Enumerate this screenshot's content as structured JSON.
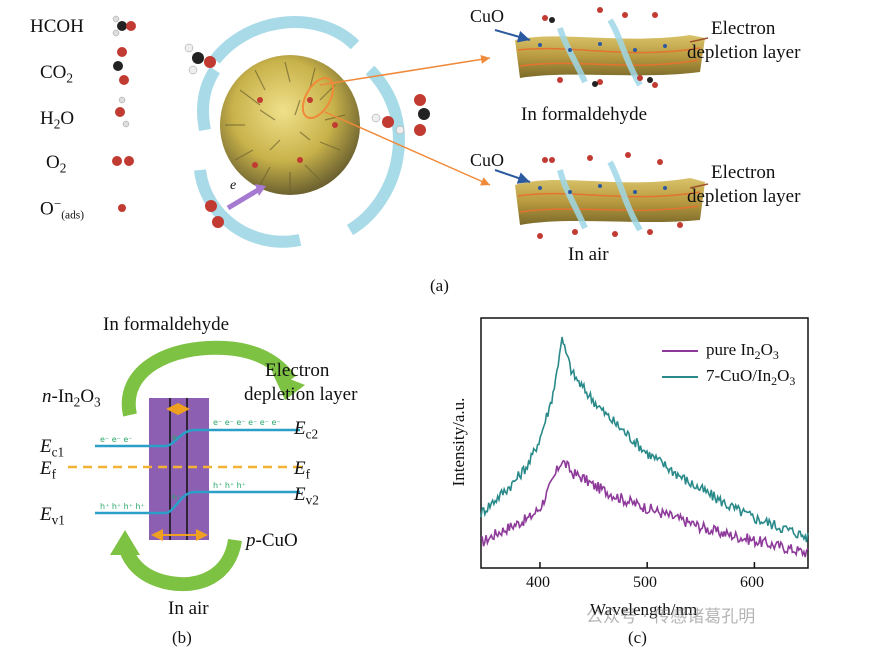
{
  "panel_a": {
    "legend": [
      {
        "id": "hcoh",
        "label": "HCOH"
      },
      {
        "id": "co2",
        "label": "CO",
        "sub": "2"
      },
      {
        "id": "h2o",
        "label": "H",
        "sub": "2",
        "label2": "O"
      },
      {
        "id": "o2",
        "label": "O",
        "sub": "2"
      },
      {
        "id": "oads",
        "label": "O",
        "sup": "−",
        "sub": "(ads)"
      }
    ],
    "electron_symbol": "e",
    "top": {
      "cuo": "CuO",
      "edl1": "Electron",
      "edl2": "depletion layer",
      "caption": "In formaldehyde"
    },
    "bottom": {
      "cuo": "CuO",
      "edl1": "Electron",
      "edl2": "depletion layer",
      "caption": "In air"
    },
    "panel_label": "(a)"
  },
  "panel_b": {
    "title": "In formaldehyde",
    "edl1": "Electron",
    "edl2": "depletion layer",
    "n_prefix": "n",
    "n_material": "-In",
    "n_sub": "2",
    "n_suffix": "O",
    "n_sub2": "3",
    "ec1": "E",
    "ec1_sub": "c1",
    "ef_left": "E",
    "ef_left_sub": "f",
    "ev1": "E",
    "ev1_sub": "v1",
    "ec2": "E",
    "ec2_sub": "c2",
    "ef_right": "E",
    "ef_right_sub": "f",
    "ev2": "E",
    "ev2_sub": "v2",
    "p_prefix": "p",
    "p_material": "-CuO",
    "bottom_caption": "In air",
    "panel_label": "(b)",
    "colors": {
      "box": "#8d5fb3",
      "line": "#2a9fc8",
      "fermi": "#f2b233",
      "arrow": "#7dc242",
      "orange": "#f0a020"
    }
  },
  "panel_c": {
    "ylabel": "Intensity/a.u.",
    "xlabel": "Wavelength/nm",
    "panel_label": "(c)",
    "watermark": "公众号 · 传感诸葛孔明",
    "legend": [
      {
        "name_main": "pure In",
        "sub1": "2",
        "mid": "O",
        "sub2": "3",
        "color": "#8e3a9a"
      },
      {
        "name_main": "7-CuO/In",
        "sub1": "2",
        "mid": "O",
        "sub2": "3",
        "color": "#2a8a8a"
      }
    ],
    "xticks": [
      "400",
      "500",
      "600"
    ]
  },
  "chart_data": {
    "type": "line",
    "title": "",
    "xlabel": "Wavelength/nm",
    "ylabel": "Intensity/a.u.",
    "xlim": [
      345,
      650
    ],
    "ylim": [
      0,
      1
    ],
    "yticks_shown": false,
    "legend_position": "top-right",
    "series": [
      {
        "name": "pure In2O3",
        "color": "#8e3a9a",
        "x": [
          345,
          360,
          375,
          390,
          400,
          410,
          415,
          420,
          425,
          430,
          440,
          450,
          460,
          480,
          500,
          520,
          540,
          560,
          580,
          600,
          620,
          640,
          650
        ],
        "y": [
          0.1,
          0.14,
          0.17,
          0.2,
          0.24,
          0.33,
          0.38,
          0.43,
          0.41,
          0.38,
          0.36,
          0.33,
          0.31,
          0.27,
          0.24,
          0.21,
          0.18,
          0.15,
          0.13,
          0.11,
          0.09,
          0.07,
          0.06
        ]
      },
      {
        "name": "7-CuO/In2O3",
        "color": "#2a8a8a",
        "x": [
          345,
          360,
          375,
          390,
          400,
          410,
          415,
          420,
          425,
          430,
          440,
          450,
          460,
          480,
          500,
          520,
          540,
          560,
          580,
          600,
          620,
          640,
          650
        ],
        "y": [
          0.22,
          0.28,
          0.34,
          0.42,
          0.52,
          0.66,
          0.76,
          0.92,
          0.85,
          0.78,
          0.72,
          0.67,
          0.62,
          0.54,
          0.46,
          0.4,
          0.34,
          0.29,
          0.24,
          0.2,
          0.17,
          0.14,
          0.12
        ]
      }
    ]
  }
}
